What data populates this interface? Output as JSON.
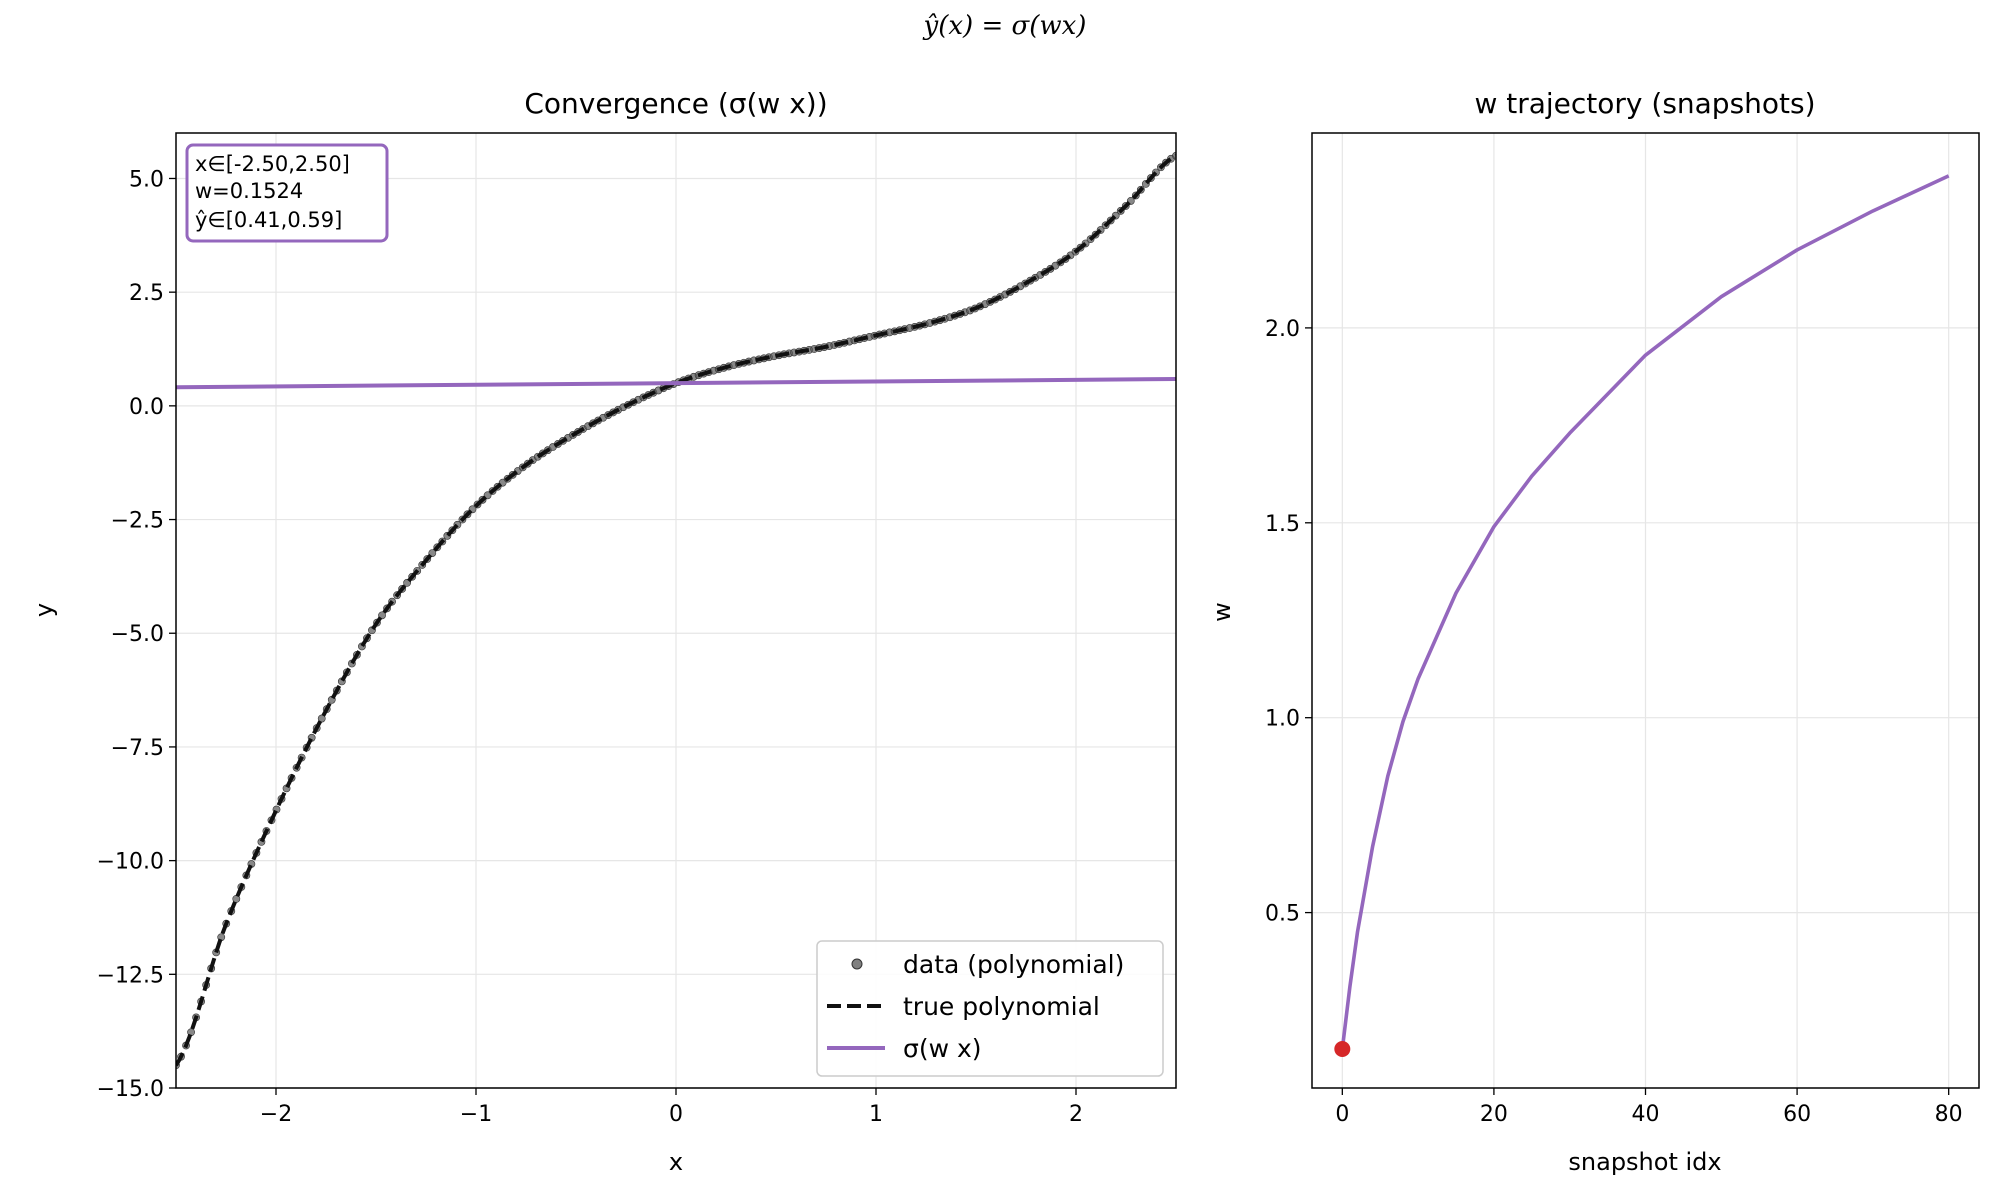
{
  "suptitle": "ŷ(x) = σ(wx)",
  "colors": {
    "data_points": "#555555",
    "true_curve": "#111111",
    "fit_line": "#9467bd",
    "start_marker": "#d62728",
    "grid": "#e6e6e6"
  },
  "chart_data": [
    {
      "type": "line",
      "title": "Convergence (σ(w x))",
      "xlabel": "x",
      "ylabel": "y",
      "xlim": [
        -2.5,
        2.5
      ],
      "ylim": [
        -15.0,
        6.0
      ],
      "xticks": [
        -2,
        -1,
        0,
        1,
        2
      ],
      "xtick_labels": [
        "−2",
        "−1",
        "0",
        "1",
        "2"
      ],
      "yticks": [
        5.0,
        2.5,
        0.0,
        -2.5,
        -5.0,
        -7.5,
        -10.0,
        -12.5,
        -15.0
      ],
      "ytick_labels": [
        "5.0",
        "2.5",
        "0.0",
        "−2.5",
        "−5.0",
        "−7.5",
        "−10.0",
        "−12.5",
        "−15.0"
      ],
      "grid": true,
      "legend_position": "bottom-right",
      "info_box": [
        "x∈[-2.50,2.50]",
        "w=0.1524",
        "ŷ∈[0.41,0.59]"
      ],
      "series": [
        {
          "name": "data (polynomial)",
          "style": "scatter",
          "x": [
            -2.5,
            -2.25,
            -2.0,
            -1.75,
            -1.5,
            -1.25,
            -1.0,
            -0.75,
            -0.5,
            -0.25,
            0.0,
            0.25,
            0.5,
            0.75,
            1.0,
            1.25,
            1.5,
            1.75,
            2.0,
            2.25,
            2.5
          ],
          "y": [
            -14.5,
            -11.4,
            -8.9,
            -6.7,
            -4.8,
            -3.4,
            -2.2,
            -1.3,
            -0.6,
            0.0,
            0.5,
            0.85,
            1.1,
            1.3,
            1.55,
            1.8,
            2.15,
            2.7,
            3.4,
            4.4,
            5.5
          ]
        },
        {
          "name": "true polynomial",
          "style": "dashed",
          "x": [
            -2.5,
            -2.25,
            -2.0,
            -1.75,
            -1.5,
            -1.25,
            -1.0,
            -0.75,
            -0.5,
            -0.25,
            0.0,
            0.25,
            0.5,
            0.75,
            1.0,
            1.25,
            1.5,
            1.75,
            2.0,
            2.25,
            2.5
          ],
          "y": [
            -14.5,
            -11.4,
            -8.9,
            -6.7,
            -4.8,
            -3.4,
            -2.2,
            -1.3,
            -0.6,
            0.0,
            0.5,
            0.85,
            1.1,
            1.3,
            1.55,
            1.8,
            2.15,
            2.7,
            3.4,
            4.4,
            5.5
          ]
        },
        {
          "name": "σ(w x)",
          "style": "solid",
          "x": [
            -2.5,
            2.5
          ],
          "y": [
            0.41,
            0.59
          ]
        }
      ]
    },
    {
      "type": "line",
      "title": "w trajectory (snapshots)",
      "xlabel": "snapshot idx",
      "ylabel": "w",
      "xlim": [
        -4,
        84
      ],
      "ylim": [
        0.05,
        2.5
      ],
      "xticks": [
        0,
        20,
        40,
        60,
        80
      ],
      "xtick_labels": [
        "0",
        "20",
        "40",
        "60",
        "80"
      ],
      "yticks": [
        0.5,
        1.0,
        1.5,
        2.0
      ],
      "ytick_labels": [
        "0.5",
        "1.0",
        "1.5",
        "2.0"
      ],
      "grid": true,
      "series": [
        {
          "style": "solid",
          "x": [
            0,
            1,
            2,
            4,
            6,
            8,
            10,
            15,
            20,
            25,
            30,
            40,
            50,
            60,
            70,
            80
          ],
          "y": [
            0.15,
            0.31,
            0.45,
            0.67,
            0.85,
            0.99,
            1.1,
            1.32,
            1.49,
            1.62,
            1.73,
            1.93,
            2.08,
            2.2,
            2.3,
            2.39
          ]
        }
      ],
      "start_point": {
        "x": 0,
        "y": 0.15
      }
    }
  ]
}
